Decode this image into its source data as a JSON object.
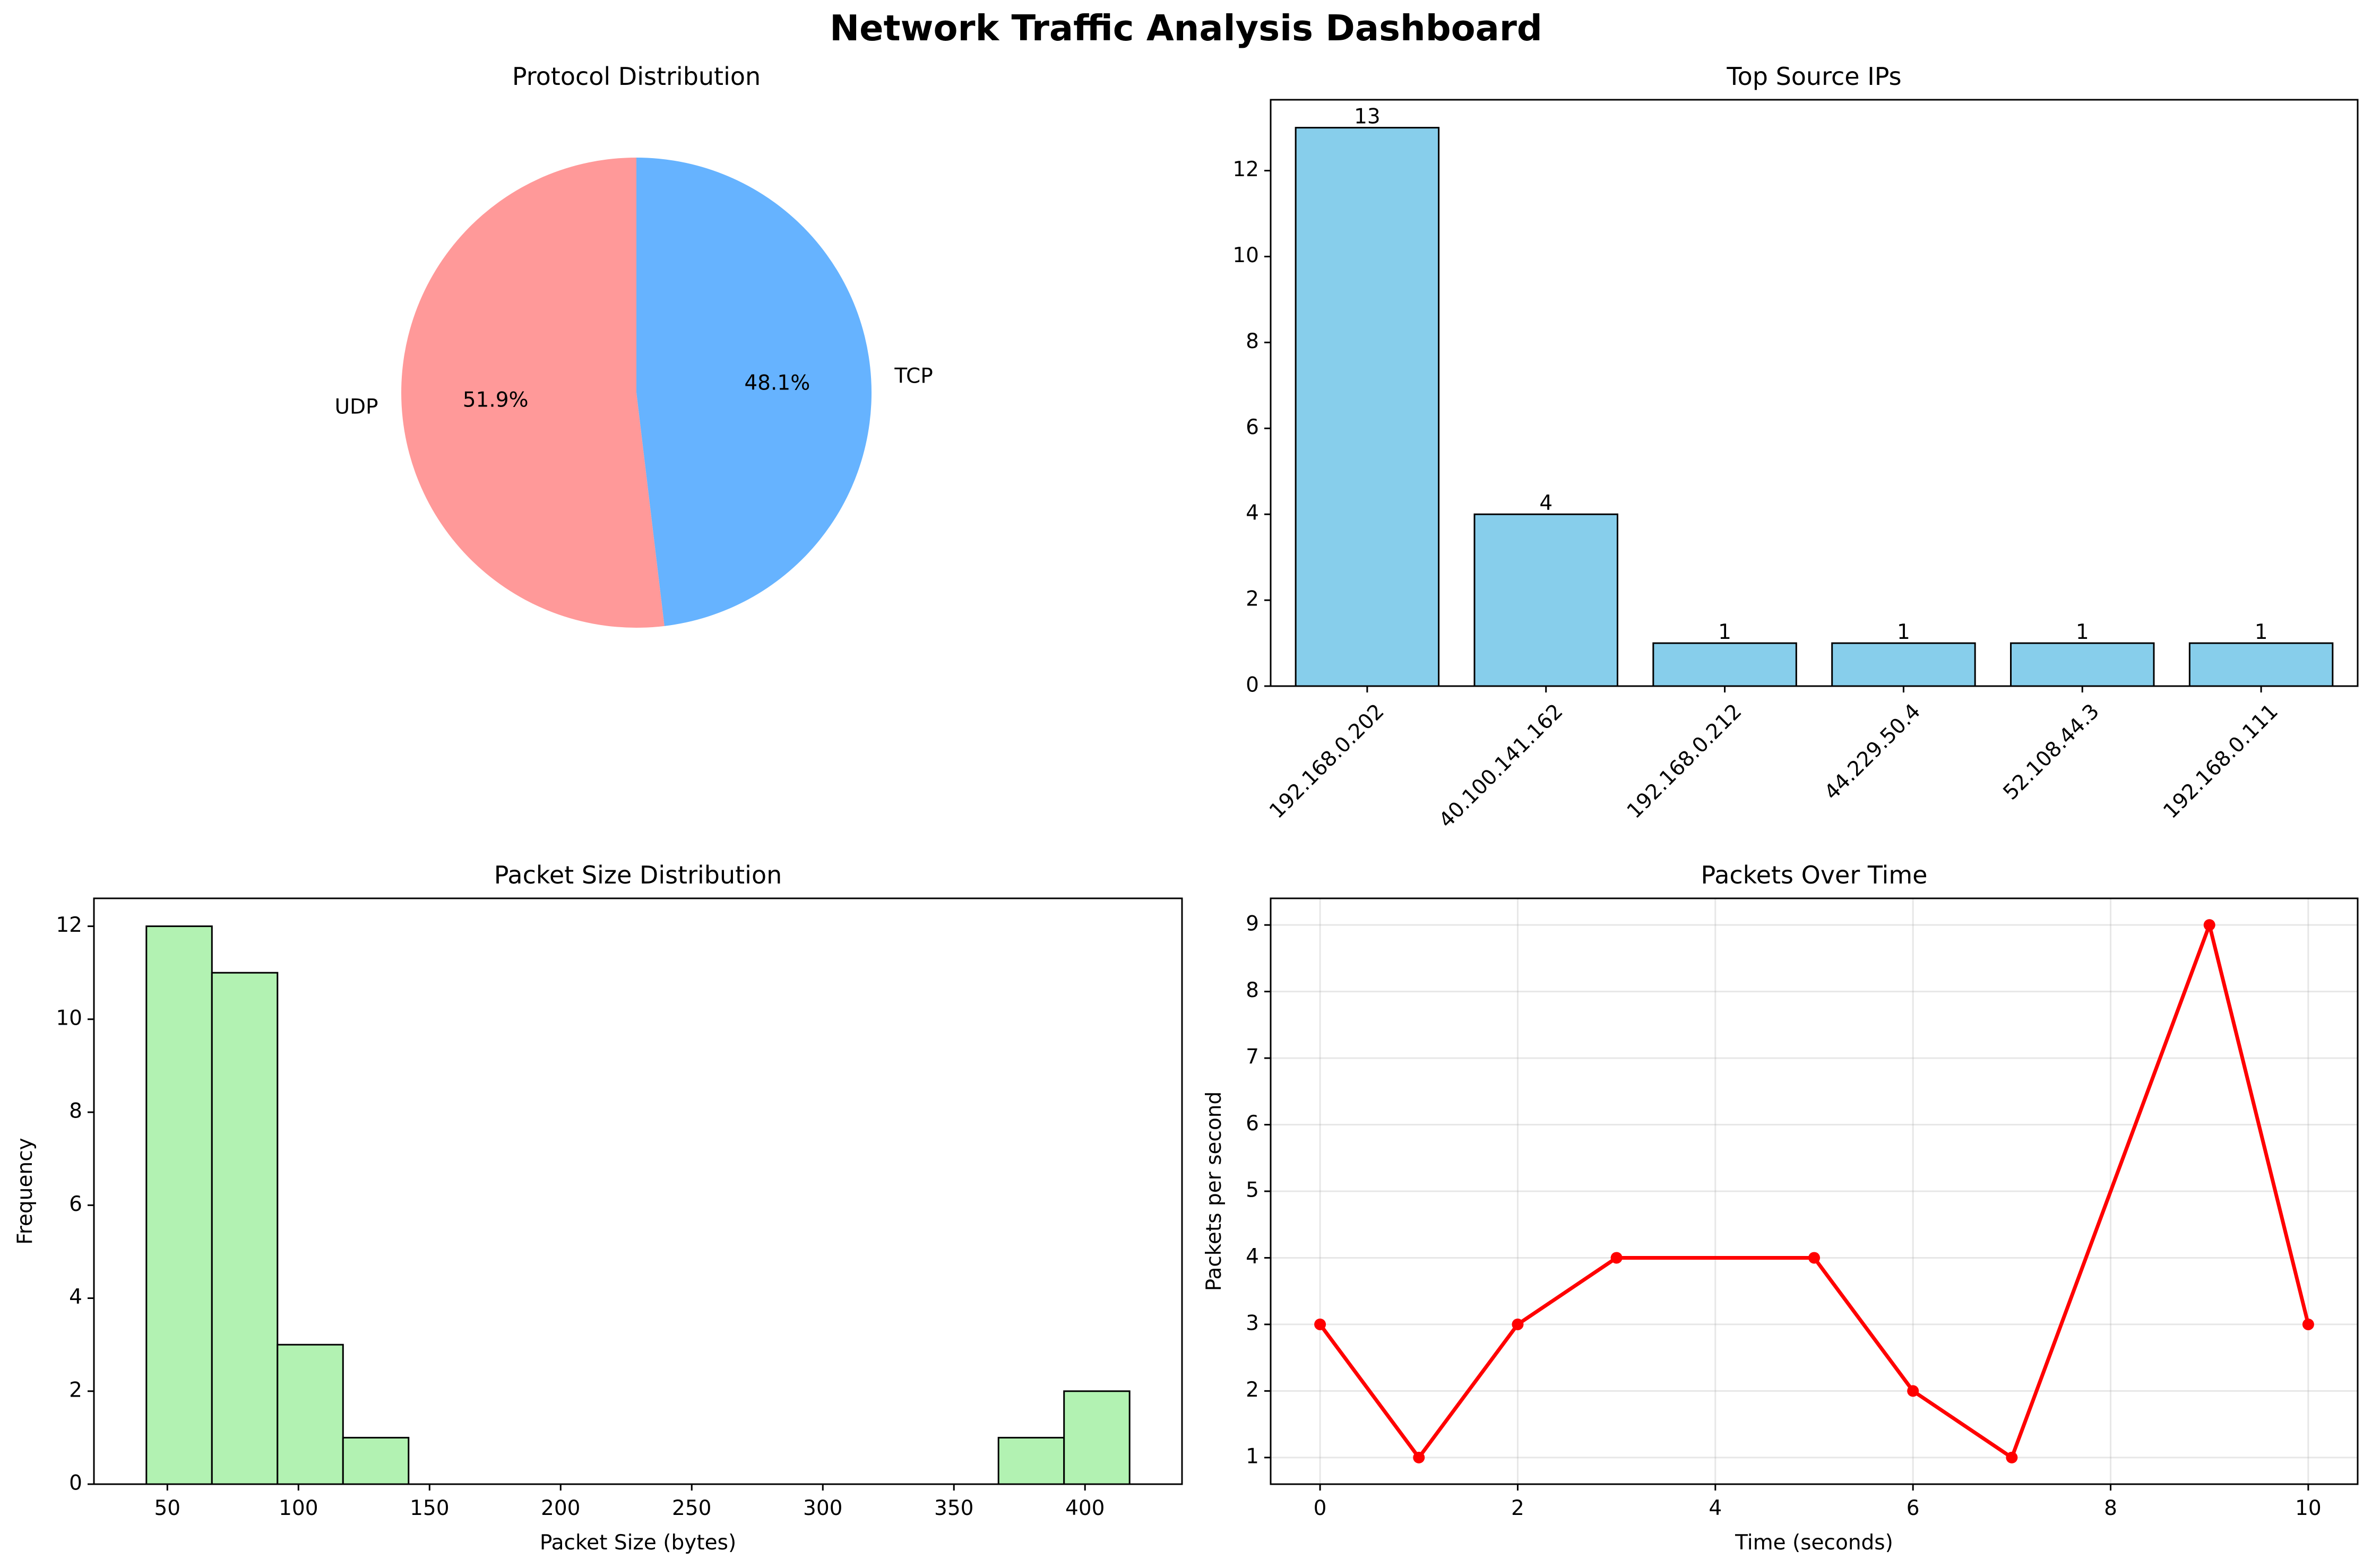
{
  "dashboard_title": "Network Traffic Analysis Dashboard",
  "chart_data": [
    {
      "type": "pie",
      "title": "Protocol Distribution",
      "slices": [
        {
          "label": "TCP",
          "value": 48.1,
          "pct_label": "48.1%",
          "color": "#66b3ff"
        },
        {
          "label": "UDP",
          "value": 51.9,
          "pct_label": "51.9%",
          "color": "#ff9999"
        }
      ]
    },
    {
      "type": "bar",
      "title": "Top Source IPs",
      "categories": [
        "192.168.0.202",
        "40.100.141.162",
        "192.168.0.212",
        "44.229.50.4",
        "52.108.44.3",
        "192.168.0.111"
      ],
      "values": [
        13,
        4,
        1,
        1,
        1,
        1
      ],
      "data_labels": [
        "13",
        "4",
        "1",
        "1",
        "1",
        "1"
      ],
      "ylim": [
        0,
        13.65
      ],
      "yticks": [
        0,
        2,
        4,
        6,
        8,
        10,
        12
      ],
      "color": "#87ceeb",
      "edgecolor": "#000000"
    },
    {
      "type": "bar",
      "subtype": "histogram",
      "title": "Packet Size Distribution",
      "xlabel": "Packet Size (bytes)",
      "ylabel": "Frequency",
      "bin_edges": [
        42,
        67,
        92,
        117,
        142,
        167,
        192,
        217,
        242,
        267,
        292,
        317,
        342,
        367,
        392,
        417
      ],
      "counts": [
        12,
        11,
        3,
        1,
        0,
        0,
        0,
        0,
        0,
        0,
        0,
        0,
        0,
        1,
        2
      ],
      "xlim": [
        22,
        437
      ],
      "ylim": [
        0,
        12.6
      ],
      "xticks": [
        50,
        100,
        150,
        200,
        250,
        300,
        350,
        400
      ],
      "yticks": [
        0,
        2,
        4,
        6,
        8,
        10,
        12
      ],
      "color": "#b2f2b2",
      "edgecolor": "#000000"
    },
    {
      "type": "line",
      "title": "Packets Over Time",
      "xlabel": "Time (seconds)",
      "ylabel": "Packets per second",
      "x": [
        0,
        1,
        2,
        3,
        5,
        6,
        7,
        9,
        10
      ],
      "y": [
        3,
        1,
        3,
        4,
        4,
        2,
        1,
        9,
        3
      ],
      "xlim": [
        -0.5,
        10.5
      ],
      "ylim": [
        0.6,
        9.4
      ],
      "xticks": [
        0,
        2,
        4,
        6,
        8,
        10
      ],
      "yticks": [
        1,
        2,
        3,
        4,
        5,
        6,
        7,
        8,
        9
      ],
      "grid": true,
      "color": "#ff0000"
    }
  ]
}
